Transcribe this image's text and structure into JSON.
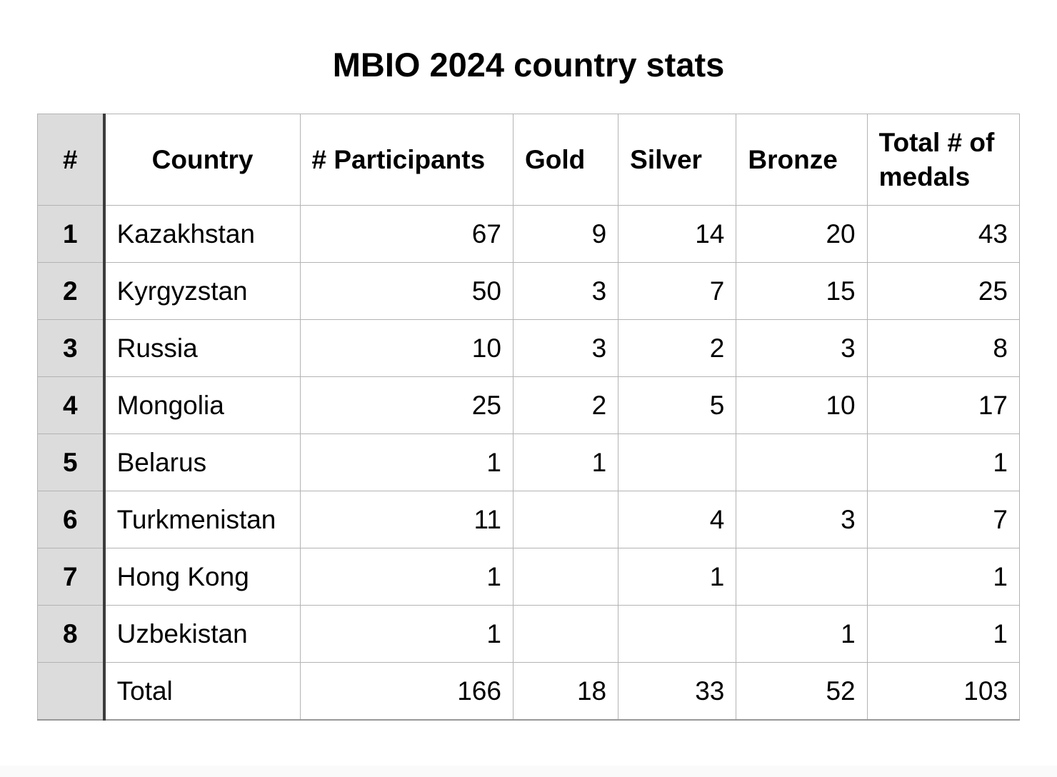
{
  "title": "MBIO 2024 country stats",
  "colors": {
    "rank_column_bg": "#dcdcdc",
    "rank_divider": "#3c3c3c",
    "grid_line": "#b3b3b3",
    "text": "#000000",
    "background": "#ffffff"
  },
  "table": {
    "columns": {
      "rank": "#",
      "country": "Country",
      "participants": "# Participants",
      "gold": "Gold",
      "silver": "Silver",
      "bronze": "Bronze",
      "total": "Total # of medals"
    },
    "rows": [
      {
        "rank": "1",
        "country": "Kazakhstan",
        "participants": "67",
        "gold": "9",
        "silver": "14",
        "bronze": "20",
        "total": "43"
      },
      {
        "rank": "2",
        "country": "Kyrgyzstan",
        "participants": "50",
        "gold": "3",
        "silver": "7",
        "bronze": "15",
        "total": "25"
      },
      {
        "rank": "3",
        "country": "Russia",
        "participants": "10",
        "gold": "3",
        "silver": "2",
        "bronze": "3",
        "total": "8"
      },
      {
        "rank": "4",
        "country": "Mongolia",
        "participants": "25",
        "gold": "2",
        "silver": "5",
        "bronze": "10",
        "total": "17"
      },
      {
        "rank": "5",
        "country": "Belarus",
        "participants": "1",
        "gold": "1",
        "silver": "",
        "bronze": "",
        "total": "1"
      },
      {
        "rank": "6",
        "country": "Turkmenistan",
        "participants": "11",
        "gold": "",
        "silver": "4",
        "bronze": "3",
        "total": "7"
      },
      {
        "rank": "7",
        "country": "Hong Kong",
        "participants": "1",
        "gold": "",
        "silver": "1",
        "bronze": "",
        "total": "1"
      },
      {
        "rank": "8",
        "country": "Uzbekistan",
        "participants": "1",
        "gold": "",
        "silver": "",
        "bronze": "1",
        "total": "1"
      },
      {
        "rank": "",
        "country": "Total",
        "participants": "166",
        "gold": "18",
        "silver": "33",
        "bronze": "52",
        "total": "103"
      }
    ]
  },
  "chart_data": {
    "type": "table",
    "title": "MBIO 2024 country stats",
    "columns": [
      "#",
      "Country",
      "# Participants",
      "Gold",
      "Silver",
      "Bronze",
      "Total # of medals"
    ],
    "rows": [
      [
        "1",
        "Kazakhstan",
        67,
        9,
        14,
        20,
        43
      ],
      [
        "2",
        "Kyrgyzstan",
        50,
        3,
        7,
        15,
        25
      ],
      [
        "3",
        "Russia",
        10,
        3,
        2,
        3,
        8
      ],
      [
        "4",
        "Mongolia",
        25,
        2,
        5,
        10,
        17
      ],
      [
        "5",
        "Belarus",
        1,
        1,
        null,
        null,
        1
      ],
      [
        "6",
        "Turkmenistan",
        11,
        null,
        4,
        3,
        7
      ],
      [
        "7",
        "Hong Kong",
        1,
        null,
        1,
        null,
        1
      ],
      [
        "8",
        "Uzbekistan",
        1,
        null,
        null,
        1,
        1
      ],
      [
        "",
        "Total",
        166,
        18,
        33,
        52,
        103
      ]
    ]
  }
}
